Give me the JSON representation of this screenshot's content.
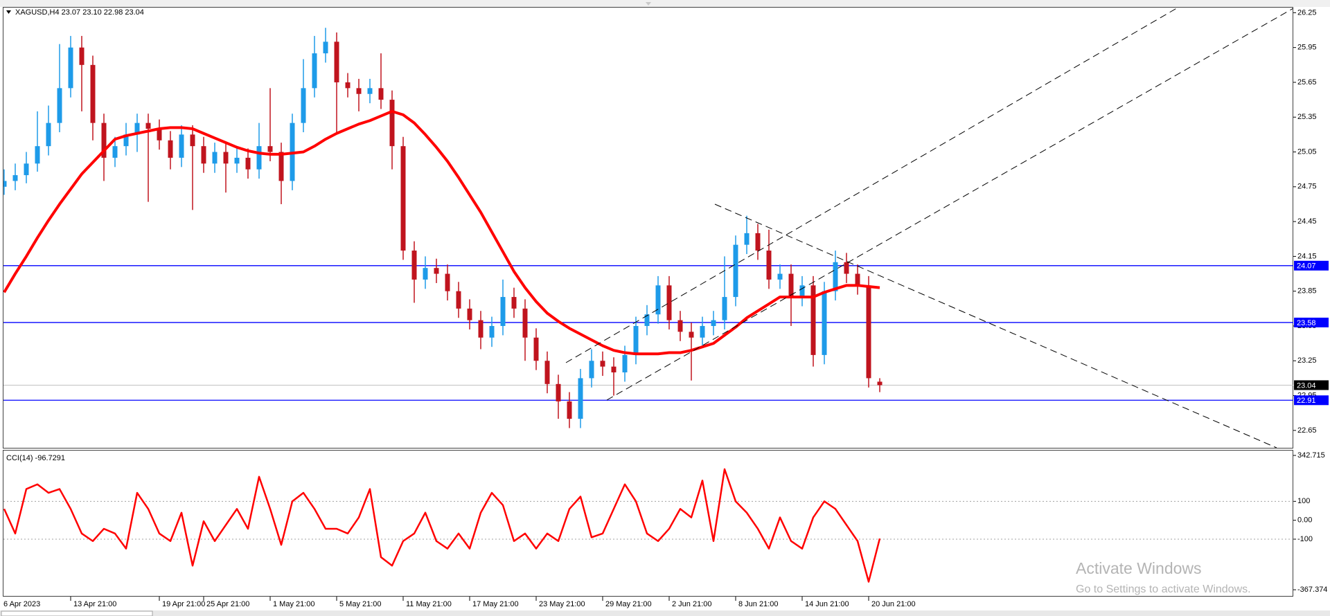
{
  "chart_data": [
    {
      "type": "candlestick",
      "title": "XAGUSD,H4  23.07 23.10 22.98 23.04",
      "categories": [
        "6 Apr 2023",
        null,
        null,
        null,
        null,
        null,
        "13 Apr 21:00",
        null,
        null,
        null,
        null,
        null,
        null,
        null,
        "19 Apr 21:00",
        null,
        null,
        null,
        "25 Apr 21:00",
        null,
        null,
        null,
        null,
        null,
        "1 May 21:00",
        null,
        null,
        null,
        null,
        null,
        "5 May 21:00",
        null,
        null,
        null,
        null,
        null,
        "11 May 21:00",
        null,
        null,
        null,
        null,
        null,
        "17 May 21:00",
        null,
        null,
        null,
        null,
        null,
        "23 May 21:00",
        null,
        null,
        null,
        null,
        null,
        "29 May 21:00",
        null,
        null,
        null,
        null,
        null,
        "2 Jun 21:00",
        null,
        null,
        null,
        null,
        null,
        "8 Jun 21:00",
        null,
        null,
        null,
        null,
        null,
        "14 Jun 21:00",
        null,
        null,
        null,
        null,
        null,
        "20 Jun 21:00",
        null
      ],
      "open": [
        24.75,
        24.8,
        24.85,
        24.95,
        25.1,
        25.3,
        25.6,
        25.95,
        25.8,
        25.3,
        25.0,
        25.1,
        25.2,
        25.3,
        25.25,
        25.15,
        25.0,
        25.2,
        25.1,
        24.95,
        25.05,
        24.95,
        25.0,
        24.9,
        25.1,
        25.05,
        24.8,
        25.3,
        25.6,
        25.9,
        26.0,
        25.65,
        25.6,
        25.55,
        25.6,
        25.5,
        25.1,
        24.2,
        23.95,
        24.05,
        24.0,
        23.85,
        23.7,
        23.6,
        23.45,
        23.55,
        23.8,
        23.7,
        23.45,
        23.25,
        23.05,
        22.9,
        22.75,
        23.1,
        23.25,
        23.2,
        23.15,
        23.3,
        23.55,
        23.65,
        23.9,
        23.6,
        23.5,
        23.45,
        23.55,
        23.6,
        23.8,
        24.25,
        24.35,
        24.2,
        23.95,
        24.0,
        23.8,
        23.9,
        23.3,
        23.85,
        24.1,
        24.0,
        23.9,
        23.07
      ],
      "high": [
        24.9,
        24.95,
        25.05,
        25.4,
        25.45,
        25.98,
        26.05,
        26.05,
        25.88,
        25.38,
        25.18,
        25.3,
        25.38,
        25.38,
        25.33,
        25.23,
        25.28,
        25.28,
        25.18,
        25.13,
        25.13,
        25.08,
        25.08,
        25.3,
        25.6,
        25.13,
        25.38,
        25.85,
        26.05,
        26.12,
        26.08,
        25.73,
        25.68,
        25.68,
        25.9,
        25.58,
        25.18,
        24.28,
        24.15,
        24.13,
        24.08,
        23.93,
        23.78,
        23.68,
        23.63,
        23.95,
        23.88,
        23.78,
        23.53,
        23.33,
        23.13,
        22.98,
        23.18,
        23.35,
        23.33,
        23.28,
        23.38,
        23.63,
        23.73,
        23.98,
        23.98,
        23.68,
        23.58,
        23.63,
        23.68,
        24.15,
        24.33,
        24.5,
        24.43,
        24.38,
        24.08,
        24.08,
        23.98,
        23.98,
        23.93,
        24.2,
        24.18,
        24.08,
        23.98,
        23.1
      ],
      "low": [
        24.68,
        24.72,
        24.78,
        24.88,
        25.02,
        25.22,
        25.52,
        25.4,
        25.15,
        24.8,
        24.92,
        25.02,
        25.05,
        24.62,
        25.07,
        24.9,
        24.92,
        24.55,
        24.87,
        24.87,
        24.7,
        24.87,
        24.82,
        24.82,
        24.97,
        24.6,
        24.72,
        25.22,
        25.52,
        25.82,
        25.2,
        25.52,
        25.4,
        25.47,
        25.42,
        24.9,
        24.12,
        23.75,
        23.87,
        23.92,
        23.77,
        23.62,
        23.52,
        23.35,
        23.37,
        23.47,
        23.62,
        23.25,
        23.17,
        22.97,
        22.75,
        22.67,
        22.67,
        23.02,
        23.12,
        22.95,
        23.07,
        23.22,
        23.47,
        23.57,
        23.52,
        23.42,
        23.08,
        23.37,
        23.47,
        23.52,
        23.72,
        24.17,
        24.12,
        23.87,
        23.87,
        23.55,
        23.72,
        23.2,
        23.22,
        23.77,
        23.92,
        23.82,
        23.02,
        22.98
      ],
      "close": [
        24.8,
        24.85,
        24.95,
        25.1,
        25.3,
        25.6,
        25.95,
        25.8,
        25.3,
        25.0,
        25.1,
        25.2,
        25.3,
        25.25,
        25.15,
        25.0,
        25.2,
        25.1,
        24.95,
        25.05,
        24.95,
        25.0,
        24.9,
        25.1,
        25.05,
        24.8,
        25.3,
        25.6,
        25.9,
        26.0,
        25.65,
        25.6,
        25.55,
        25.6,
        25.5,
        25.1,
        24.2,
        23.95,
        24.05,
        24.0,
        23.85,
        23.7,
        23.6,
        23.45,
        23.55,
        23.8,
        23.7,
        23.45,
        23.25,
        23.05,
        22.9,
        22.75,
        23.1,
        23.25,
        23.2,
        23.15,
        23.3,
        23.55,
        23.65,
        23.9,
        23.6,
        23.5,
        23.45,
        23.55,
        23.6,
        23.8,
        24.25,
        24.35,
        24.2,
        23.95,
        24.0,
        23.8,
        23.9,
        23.3,
        23.85,
        24.1,
        24.0,
        23.9,
        23.1,
        23.04
      ],
      "up_color": "#1e9be9",
      "down_color": "#c0141e",
      "series": [
        {
          "color": "#ff0000",
          "values": [
            23.84,
            24.0,
            24.15,
            24.31,
            24.46,
            24.6,
            24.73,
            24.86,
            24.96,
            25.06,
            25.16,
            25.19,
            25.21,
            25.23,
            25.25,
            25.26,
            25.26,
            25.25,
            25.21,
            25.17,
            25.13,
            25.09,
            25.06,
            25.04,
            25.03,
            25.03,
            25.04,
            25.05,
            25.1,
            25.16,
            25.21,
            25.25,
            25.29,
            25.32,
            25.36,
            25.4,
            25.37,
            25.3,
            25.2,
            25.09,
            24.97,
            24.83,
            24.68,
            24.53,
            24.36,
            24.19,
            24.02,
            23.88,
            23.76,
            23.66,
            23.59,
            23.53,
            23.48,
            23.43,
            23.38,
            23.34,
            23.32,
            23.31,
            23.31,
            23.31,
            23.32,
            23.32,
            23.34,
            23.37,
            23.4,
            23.47,
            23.54,
            23.62,
            23.68,
            23.74,
            23.8,
            23.8,
            23.8,
            23.8,
            23.84,
            23.87,
            23.9,
            23.9,
            23.89,
            23.88
          ]
        }
      ],
      "ylim": [
        22.5,
        26.3
      ],
      "yticks": [
        22.65,
        22.95,
        23.25,
        23.55,
        23.85,
        24.15,
        24.45,
        24.75,
        25.05,
        25.35,
        25.65,
        25.95,
        26.25
      ],
      "hlines": {
        "values": [
          24.07,
          23.58,
          22.91
        ],
        "color": "#0000ff"
      },
      "last_price": 23.04
    },
    {
      "type": "line",
      "title": "CCI(14) -96.7291",
      "series": [
        {
          "color": "#ff0000",
          "values": [
            60,
            -70,
            165,
            190,
            145,
            165,
            60,
            -70,
            -110,
            -45,
            -70,
            -150,
            145,
            60,
            -70,
            -110,
            40,
            -240,
            -5,
            -110,
            -25,
            60,
            -45,
            230,
            60,
            -130,
            100,
            145,
            60,
            -45,
            -45,
            -70,
            15,
            165,
            -195,
            -240,
            -110,
            -70,
            40,
            -110,
            -150,
            -70,
            -150,
            40,
            145,
            80,
            -110,
            -70,
            -150,
            -70,
            -110,
            60,
            125,
            -90,
            -70,
            60,
            190,
            100,
            -70,
            -110,
            -45,
            60,
            15,
            210,
            -110,
            270,
            100,
            40,
            -45,
            -150,
            15,
            -110,
            -150,
            15,
            100,
            60,
            -25,
            -110,
            -325,
            -96.7291
          ]
        }
      ],
      "ylim": [
        -400,
        372
      ],
      "yticks": [
        -367.374,
        -100,
        {
          "value": 0,
          "label": "0.00"
        },
        100,
        342.715
      ],
      "levels": [
        100,
        -100
      ]
    }
  ],
  "watermark": {
    "title": "Activate Windows",
    "subtitle": "Go to Settings to activate Windows."
  }
}
